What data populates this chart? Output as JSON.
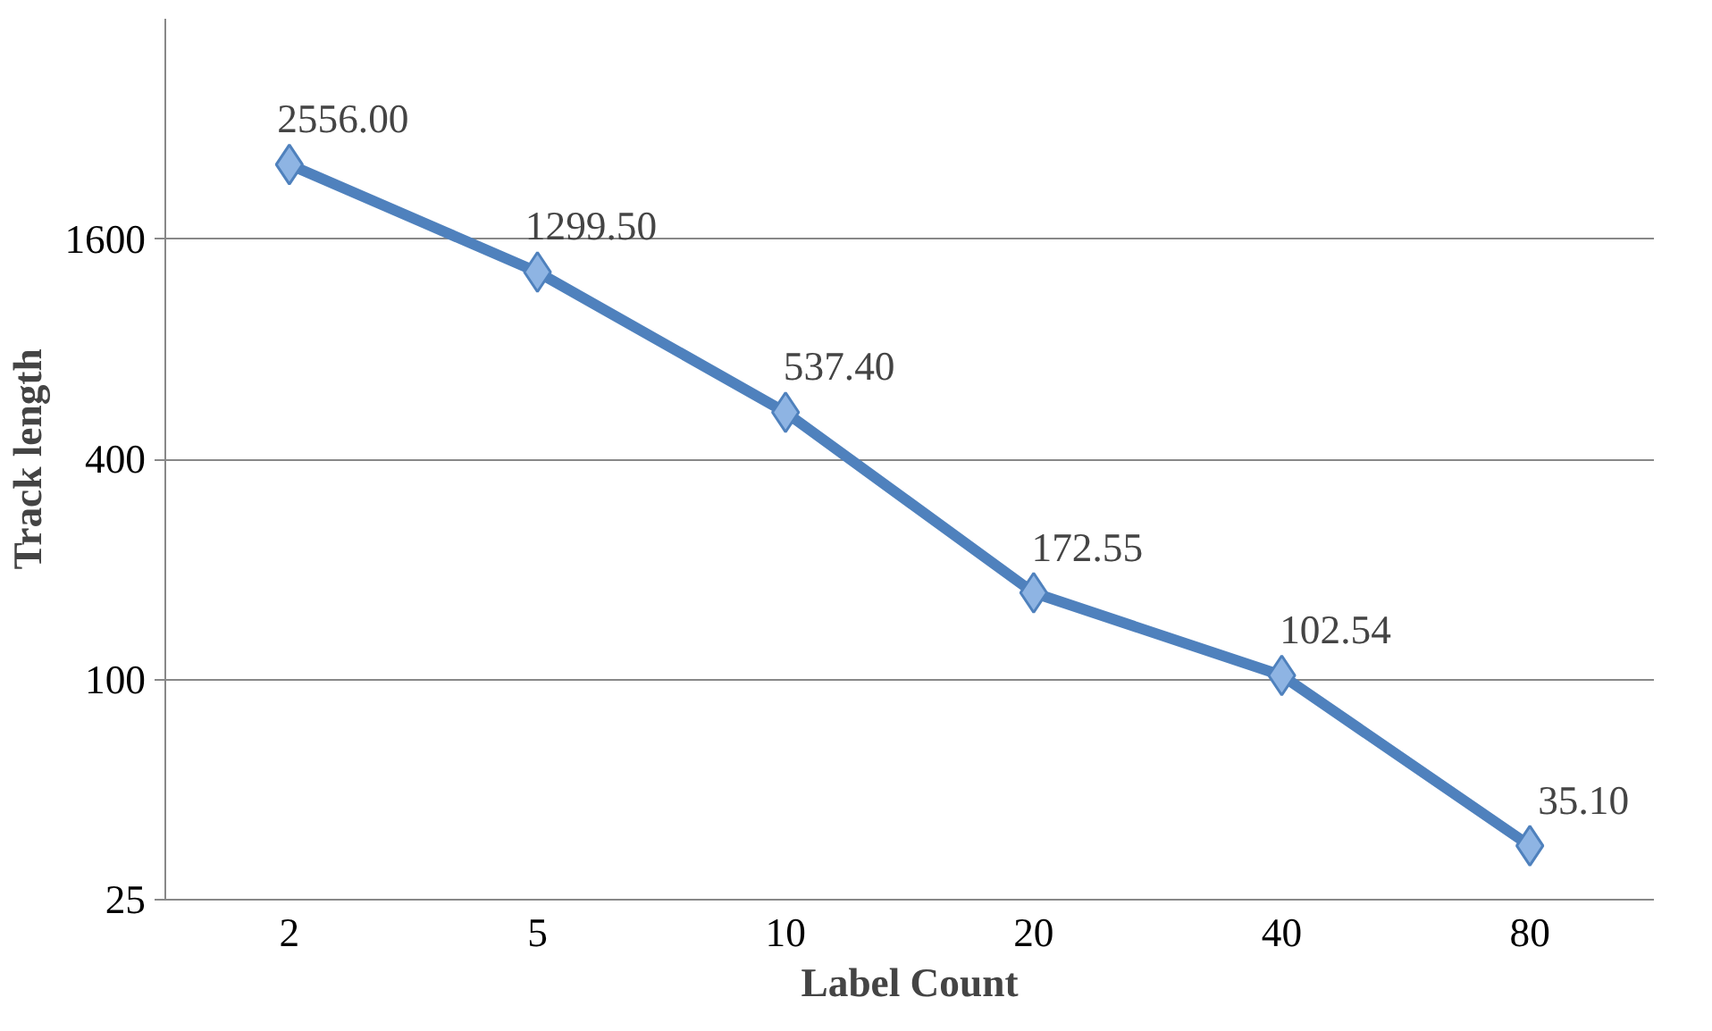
{
  "chart_data": {
    "type": "line",
    "xlabel": "Label Count",
    "ylabel": "Track length",
    "categories": [
      "2",
      "5",
      "10",
      "20",
      "40",
      "80"
    ],
    "series": [
      {
        "color": "#4f81bd",
        "values": [
          2556.0,
          1299.5,
          537.4,
          172.55,
          102.54,
          35.1
        ],
        "value_labels": [
          "2556.00",
          "1299.50",
          "537.40",
          "172.55",
          "102.54",
          "35.10"
        ]
      }
    ],
    "log": "y",
    "ylim": [
      25,
      6400
    ],
    "yticks": [
      25,
      100,
      400,
      1600
    ],
    "grid": "y",
    "marker": "diamond",
    "line_style": "solid"
  }
}
